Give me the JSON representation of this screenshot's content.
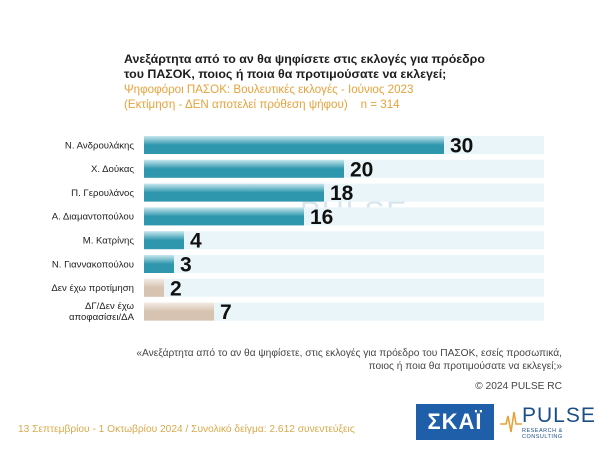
{
  "title": {
    "line1": "Ανεξάρτητα από το αν θα ψηφίσετε στις εκλογές για πρόεδρο",
    "line2": "του ΠΑΣΟΚ, ποιος ή ποια θα προτιμούσατε να εκλεγεί;",
    "subtitle1": "Ψηφοφόροι ΠΑΣΟΚ: Βουλευτικές εκλογές - Ιούνιος 2023",
    "subtitle2": "(Εκτίμηση - ΔΕΝ αποτελεί πρόθεση ψήφου)    n = 314"
  },
  "chart_data": {
    "type": "bar",
    "orientation": "horizontal",
    "categories": [
      "Ν. Ανδρουλάκης",
      "Χ. Δούκας",
      "Π. Γερουλάνος",
      "Α. Διαμαντοπούλου",
      "Μ. Κατρίνης",
      "Ν. Γιαννακοπούλου",
      "Δεν έχω προτίμηση",
      "ΔΓ/Δεν έχω αποφασίσει/ΔΑ"
    ],
    "values": [
      30,
      20,
      18,
      16,
      4,
      3,
      2,
      7
    ],
    "value_labels": [
      "30",
      "20",
      "18",
      "16",
      "4",
      "3",
      "2",
      "7"
    ],
    "bar_styles": [
      "blue",
      "blue",
      "blue",
      "blue",
      "blue",
      "blue",
      "beige",
      "beige"
    ],
    "xlim": [
      0,
      30
    ],
    "grid": false,
    "legend": "none"
  },
  "colors": {
    "bar_blue": "#2f97ad",
    "bar_blue_light": "#c7e7ee",
    "bar_beige": "#d6c3b1",
    "bar_beige_light": "#f3ebe3",
    "track": "#e9f5f9",
    "subtitle": "#e8a23a",
    "footer": "#d9a94a"
  },
  "watermark": {
    "word": "PULSE",
    "tagline": "RESEARCH & CONSULTING"
  },
  "footnote": {
    "line1": "«Ανεξάρτητα από το αν θα ψηφίσετε, στις εκλογές για πρόεδρο του ΠΑΣΟΚ, εσείς προσωπικά,",
    "line2": "ποιος ή ποια θα προτιμούσατε να εκλεγεί;»"
  },
  "copyright": "© 2024 PULSE RC",
  "fieldwork": "13 Σεπτεμβρίου - 1 Οκτωβρίου 2024  /  Συνολικό δείγμα:  2.612 συνεντεύξεις",
  "logos": {
    "skai": "ΣΚΑΪ",
    "pulse_word": "PULSE",
    "pulse_tagline": "RESEARCH & CONSULTING"
  }
}
